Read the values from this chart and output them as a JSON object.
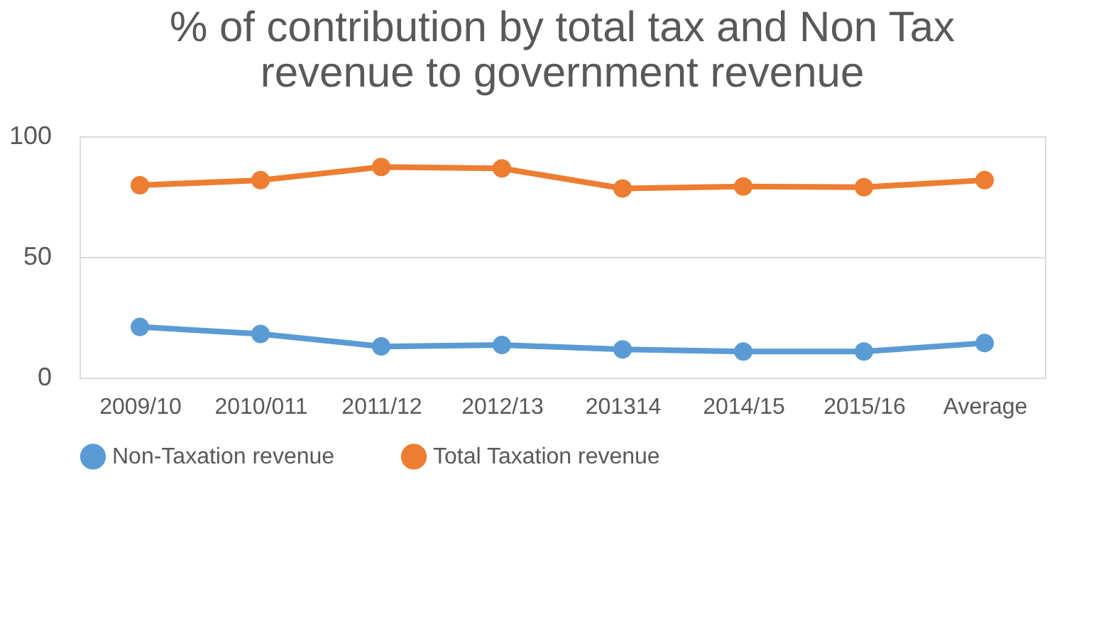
{
  "chart_data": {
    "type": "line",
    "title": "% of contribution by total tax and Non Tax revenue to government revenue",
    "categories": [
      "2009/10",
      "2010/011",
      "2011/12",
      "2012/13",
      "201314",
      "2014/15",
      "2015/16",
      "Average"
    ],
    "series": [
      {
        "name": "Non-Taxation revenue",
        "color": "#5b9bd5",
        "values": [
          21,
          18.1,
          12.9,
          13.5,
          11.7,
          10.8,
          10.8,
          14.3
        ]
      },
      {
        "name": "Total Taxation revenue",
        "color": "#ed7d31",
        "values": [
          79.7,
          81.8,
          87.3,
          86.7,
          78.4,
          79.2,
          78.9,
          81.8
        ]
      }
    ],
    "ylim": [
      0,
      100
    ],
    "yticks": [
      0,
      50,
      100
    ],
    "grid": "y",
    "legend": "bottom",
    "marker": "circle"
  }
}
